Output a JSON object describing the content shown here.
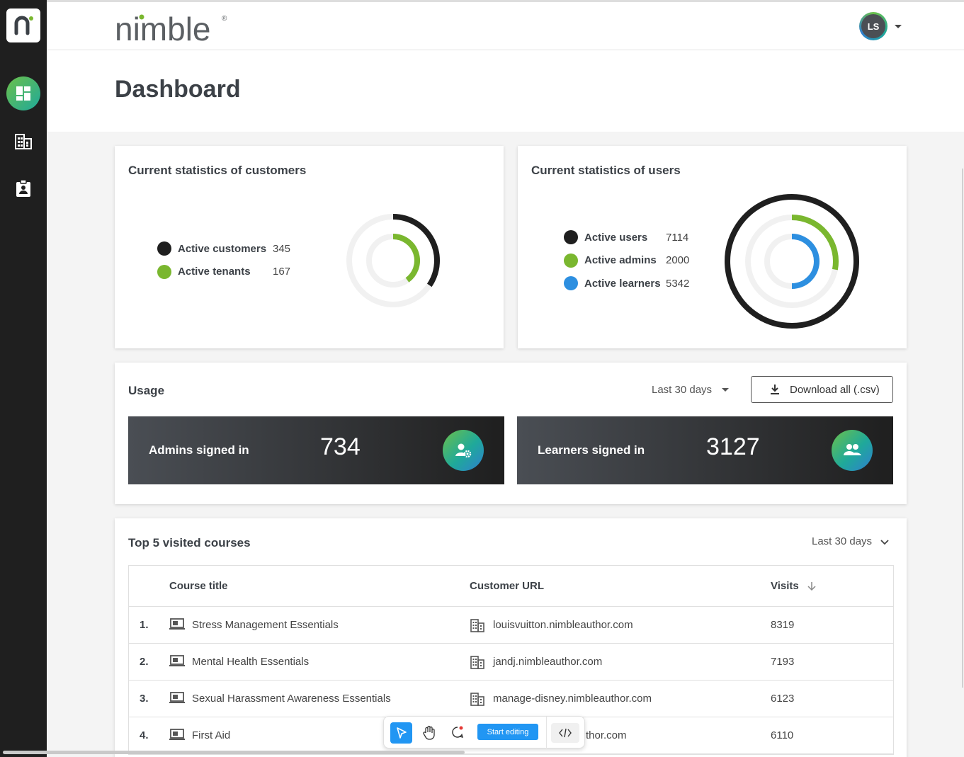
{
  "app": {
    "logo_text": "nimble",
    "user_initials": "LS"
  },
  "nav": {
    "items": [
      {
        "icon": "dashboard-icon",
        "active": true
      },
      {
        "icon": "building-icon",
        "active": false
      },
      {
        "icon": "badge-icon",
        "active": false
      }
    ]
  },
  "page": {
    "title": "Dashboard"
  },
  "customers": {
    "title": "Current statistics of customers",
    "legend": [
      {
        "label": "Active customers",
        "value": "345",
        "color": "#1f1f1f"
      },
      {
        "label": "Active tenants",
        "value": "167",
        "color": "#7ab72f"
      }
    ]
  },
  "users": {
    "title": "Current statistics of users",
    "legend": [
      {
        "label": "Active users",
        "value": "7114",
        "color": "#1f1f1f"
      },
      {
        "label": "Active admins",
        "value": "2000",
        "color": "#7ab72f"
      },
      {
        "label": "Active learners",
        "value": "5342",
        "color": "#2d8fe0"
      }
    ]
  },
  "usage": {
    "title": "Usage",
    "period": "Last 30 days",
    "download_label": "Download all (.csv)",
    "admins": {
      "label": "Admins signed in",
      "value": "734"
    },
    "learners": {
      "label": "Learners signed in",
      "value": "3127"
    }
  },
  "courses": {
    "title": "Top 5 visited courses",
    "period": "Last 30 days",
    "columns": [
      "Course title",
      "Customer URL",
      "Visits"
    ],
    "rows": [
      {
        "rank": "1.",
        "title": "Stress Management Essentials",
        "url": "louisvuitton.nimbleauthor.com",
        "visits": "8319"
      },
      {
        "rank": "2.",
        "title": "Mental Health Essentials",
        "url": "jandj.nimbleauthor.com",
        "visits": "7193"
      },
      {
        "rank": "3.",
        "title": "Sexual Harassment Awareness Essentials",
        "url": "manage-disney.nimbleauthor.com",
        "visits": "6123"
      },
      {
        "rank": "4.",
        "title": "First Aid",
        "url": "thor.com",
        "visits": "6110"
      }
    ]
  },
  "toolbar": {
    "start_label": "Start editing"
  },
  "chart_data": [
    {
      "type": "pie",
      "series": [
        {
          "name": "Active customers",
          "values": [
            345
          ],
          "fraction": 0.345
        },
        {
          "name": "Active tenants",
          "values": [
            167
          ],
          "fraction": 0.4
        }
      ]
    },
    {
      "type": "pie",
      "series": [
        {
          "name": "Active users",
          "values": [
            7114
          ],
          "fraction": 1.0
        },
        {
          "name": "Active admins",
          "values": [
            2000
          ],
          "fraction": 0.28
        },
        {
          "name": "Active learners",
          "values": [
            5342
          ],
          "fraction": 0.5
        }
      ]
    }
  ]
}
